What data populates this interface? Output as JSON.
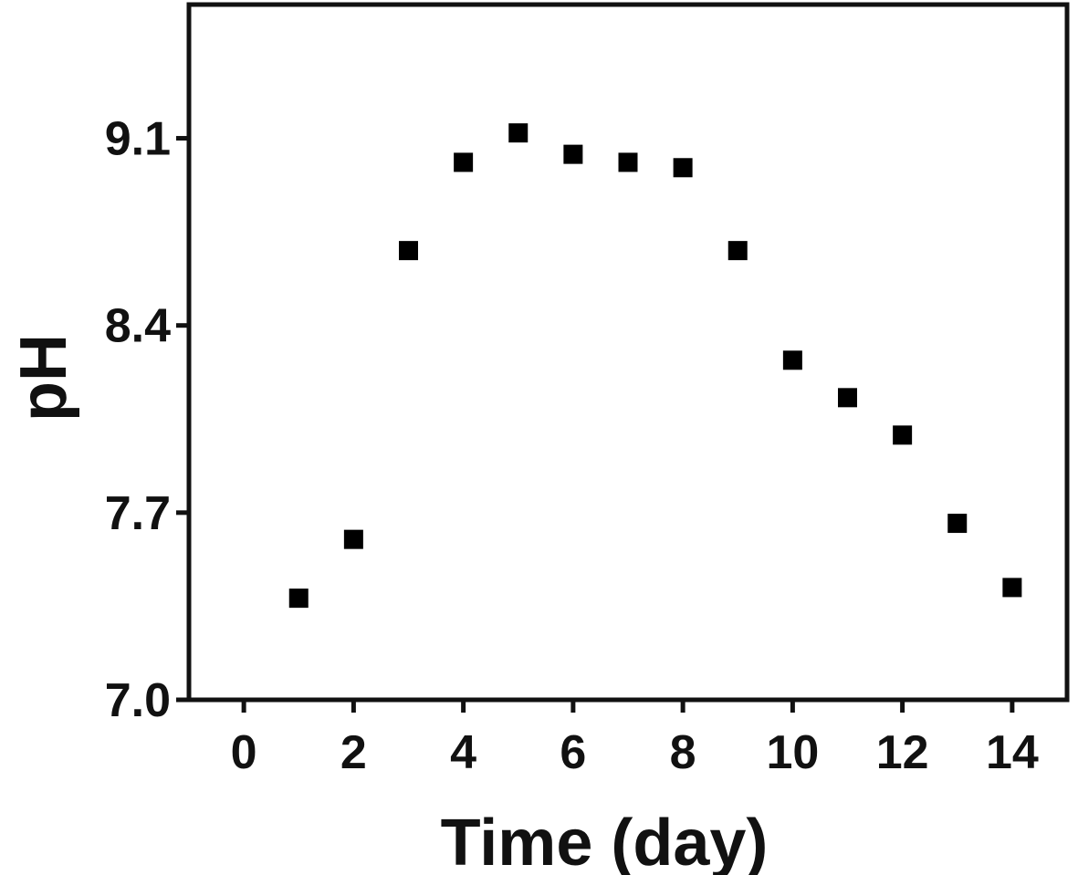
{
  "chart_data": {
    "type": "scatter",
    "title": "",
    "xlabel": "Time (day)",
    "ylabel": "pH",
    "xlim": [
      -1,
      15
    ],
    "ylim": [
      7.0,
      9.6
    ],
    "x_ticks": [
      0,
      2,
      4,
      6,
      8,
      10,
      12,
      14
    ],
    "y_ticks": [
      7.0,
      7.7,
      8.4,
      9.1
    ],
    "x_tick_labels": [
      "0",
      "2",
      "4",
      "6",
      "8",
      "10",
      "12",
      "14"
    ],
    "y_tick_labels": [
      "7.0",
      "7.7",
      "8.4",
      "9.1"
    ],
    "grid": false,
    "legend": "none",
    "marker": "square",
    "colors": {
      "marker": "#000000",
      "axis": "#111111",
      "background": "#ffffff"
    },
    "series": [
      {
        "x": [
          1,
          2,
          3,
          4,
          5,
          6,
          7,
          8,
          9,
          10,
          11,
          12,
          13,
          14
        ],
        "y": [
          7.38,
          7.6,
          8.68,
          9.01,
          9.12,
          9.04,
          9.01,
          8.99,
          8.68,
          8.27,
          8.13,
          7.99,
          7.66,
          7.42
        ]
      }
    ]
  }
}
